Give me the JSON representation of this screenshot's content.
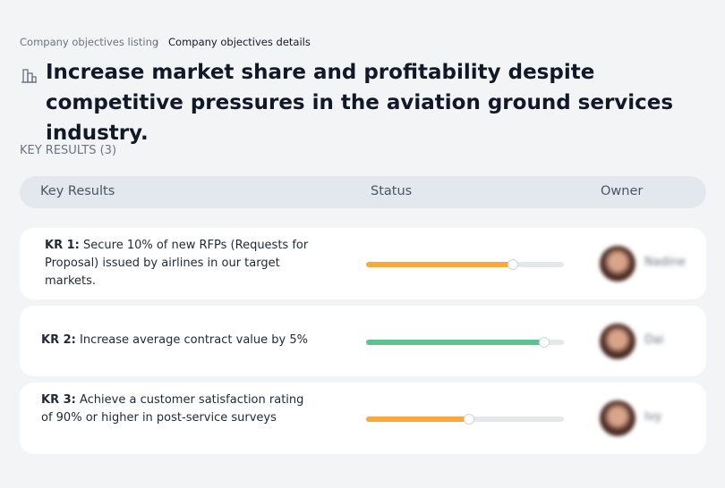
{
  "breadcrumb": [
    "Company objectives listing",
    "Company objectives details"
  ],
  "title": "Increase market share and profitability despite competitive pressures in the aviation ground services industry.",
  "section_label": "KEY RESULTS (3)",
  "table": {
    "columns": [
      "Key Results",
      "Status",
      "Owner"
    ],
    "rows": [
      {
        "label": "KR 1:",
        "text": "Secure 10% of new RFPs (Requests for Proposal) issued by airlines in our target markets.",
        "progress": 74,
        "color": "#f9a93b",
        "owner": "Nadine"
      },
      {
        "label": "KR 2:",
        "text": "Increase average contract value by 5%",
        "progress": 90,
        "color": "#5cc290",
        "owner": "Dai"
      },
      {
        "label": "KR 3:",
        "text": "Achieve a customer satisfaction rating of 90% or higher in post-service surveys",
        "progress": 52,
        "color": "#f9a93b",
        "owner": "Ivy"
      }
    ]
  }
}
